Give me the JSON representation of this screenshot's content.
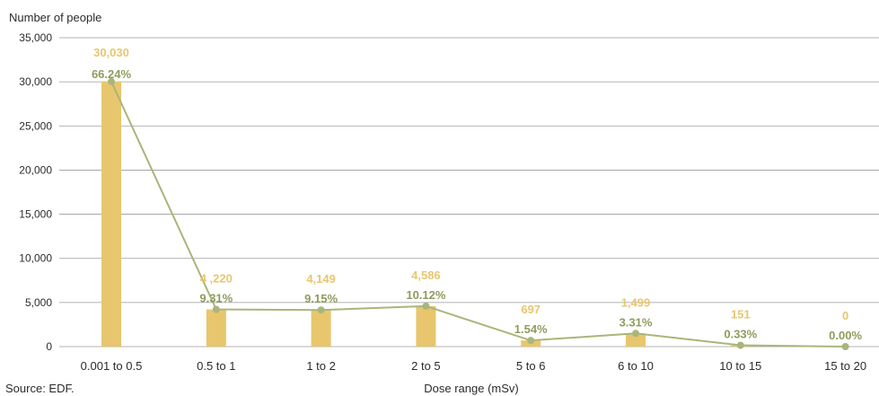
{
  "chart_data": {
    "type": "bar",
    "ylabel": "Number of people",
    "xlabel": "Dose range (mSv)",
    "source": "Source: EDF.",
    "ylim": [
      0,
      35000
    ],
    "yticks": [
      0,
      5000,
      10000,
      15000,
      20000,
      25000,
      30000,
      35000
    ],
    "ytick_labels": [
      "0",
      "5,000",
      "10,000",
      "15,000",
      "20,000",
      "25,000",
      "30,000",
      "35,000"
    ],
    "grid": true,
    "categories": [
      "0.001 to 0.5",
      "0.5 to 1",
      "1 to 2",
      "2 to 5",
      "5 to 6",
      "6 to 10",
      "10 to 15",
      "15 to 20"
    ],
    "values": [
      30030,
      4220,
      4149,
      4586,
      697,
      1499,
      151,
      0
    ],
    "value_labels": [
      "30,030",
      "4 ,220",
      "4,149",
      "4,586",
      "697",
      "1,499",
      "151",
      "0"
    ],
    "percentages": [
      66.24,
      9.31,
      9.15,
      10.12,
      1.54,
      3.31,
      0.33,
      0.0
    ],
    "percent_labels": [
      "66.24%",
      "9.31%",
      "9.15%",
      "10.12%",
      "1.54%",
      "3.31%",
      "0.33%",
      "0.00%"
    ],
    "colors": {
      "bar": "#E8C66E",
      "value_label": "#E8C66E",
      "line": "#A9B57A",
      "percent_label": "#8E9C5C",
      "grid": "#9a9a9a"
    }
  }
}
